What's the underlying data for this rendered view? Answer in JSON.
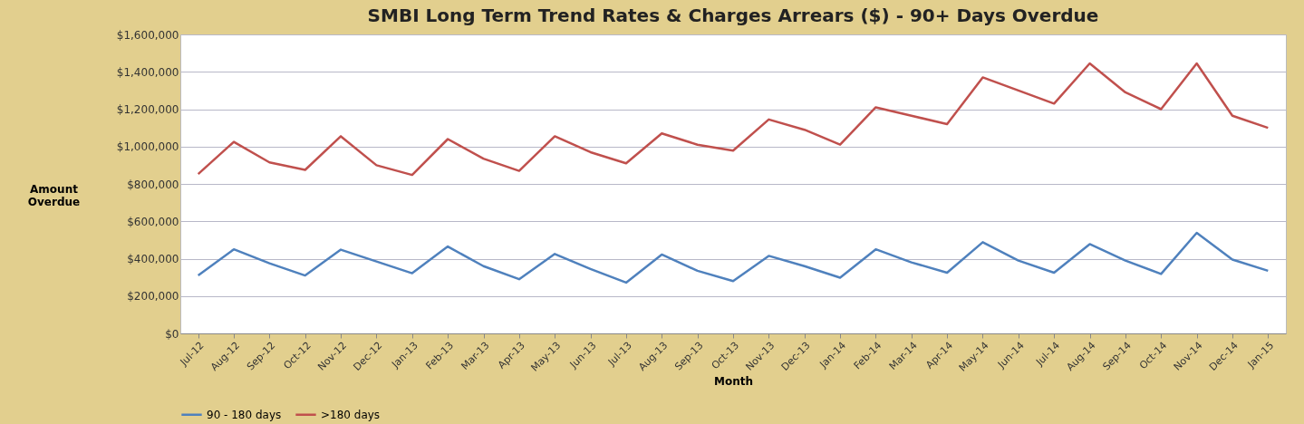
{
  "chart_data": {
    "type": "line",
    "title": "SMBI Long Term Trend Rates & Charges Arrears ($) - 90+ Days Overdue",
    "xlabel": "Month",
    "ylabel": "Amount Overdue",
    "categories": [
      "Jul-12",
      "Aug-12",
      "Sep-12",
      "Oct-12",
      "Nov-12",
      "Dec-12",
      "Jan-13",
      "Feb-13",
      "Mar-13",
      "Apr-13",
      "May-13",
      "Jun-13",
      "Jul-13",
      "Aug-13",
      "Sep-13",
      "Oct-13",
      "Nov-13",
      "Dec-13",
      "Jan-14",
      "Feb-14",
      "Mar-14",
      "Apr-14",
      "May-14",
      "Jun-14",
      "Jul-14",
      "Aug-14",
      "Sep-14",
      "Oct-14",
      "Nov-14",
      "Dec-14",
      "Jan-15"
    ],
    "series": [
      {
        "name": "90 - 180 days",
        "color": "#4f81bd",
        "values": [
          310000,
          450000,
          375000,
          310000,
          448000,
          385000,
          322000,
          465000,
          360000,
          290000,
          425000,
          345000,
          272000,
          422000,
          335000,
          280000,
          415000,
          360000,
          298000,
          450000,
          380000,
          325000,
          488000,
          390000,
          325000,
          478000,
          390000,
          318000,
          538000,
          395000,
          335000
        ]
      },
      {
        "name": ">180 days",
        "color": "#c0504d",
        "values": [
          853000,
          1025000,
          915000,
          875000,
          1055000,
          900000,
          848000,
          1040000,
          935000,
          870000,
          1055000,
          970000,
          910000,
          1070000,
          1010000,
          978000,
          1145000,
          1090000,
          1010000,
          1210000,
          1165000,
          1120000,
          1370000,
          1300000,
          1230000,
          1445000,
          1290000,
          1200000,
          1445000,
          1165000,
          1100000
        ]
      }
    ],
    "ylim": [
      0,
      1600000
    ],
    "yticks": [
      {
        "value": 0,
        "label": "$0"
      },
      {
        "value": 200000,
        "label": "$200,000"
      },
      {
        "value": 400000,
        "label": "$400,000"
      },
      {
        "value": 600000,
        "label": "$600,000"
      },
      {
        "value": 800000,
        "label": "$800,000"
      },
      {
        "value": 1000000,
        "label": "$1,000,000"
      },
      {
        "value": 1200000,
        "label": "$1,200,000"
      },
      {
        "value": 1400000,
        "label": "$1,400,000"
      },
      {
        "value": 1600000,
        "label": "$1,600,000"
      }
    ],
    "grid": "y",
    "legend": "bottom",
    "marker": "none",
    "line_style": "solid"
  }
}
